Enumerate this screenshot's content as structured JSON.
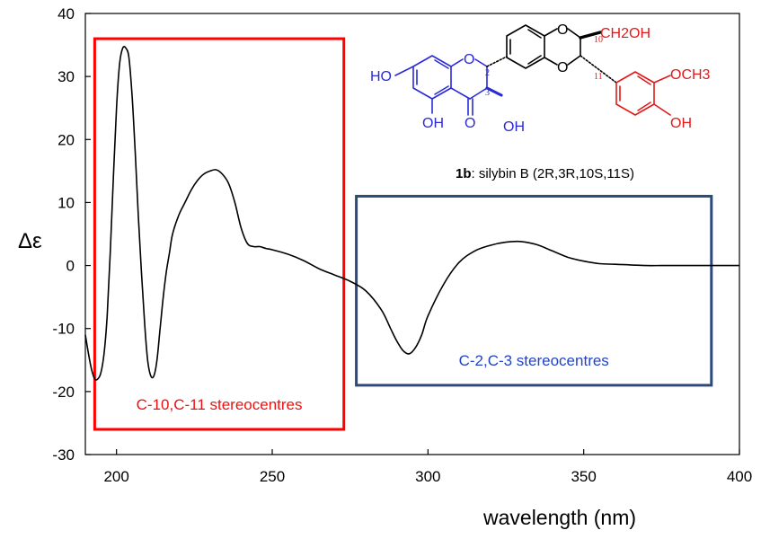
{
  "chart_data": {
    "type": "line",
    "xlabel": "wavelength (nm)",
    "ylabel": "Δε",
    "xlim": [
      190,
      400
    ],
    "ylim": [
      -30,
      40
    ],
    "xticks": [
      200,
      250,
      300,
      350,
      400
    ],
    "yticks": [
      -30,
      -20,
      -10,
      0,
      10,
      20,
      30,
      40
    ],
    "grid": false,
    "series": [
      {
        "color": "#000000",
        "x": [
          190,
          191,
          192,
          193,
          194,
          195,
          196,
          197,
          198,
          199,
          200,
          201,
          202,
          203,
          204,
          205,
          206,
          207,
          208,
          209,
          210,
          211,
          212,
          213,
          214,
          215,
          216,
          217,
          218,
          220,
          222,
          224,
          226,
          228,
          230,
          232,
          234,
          236,
          238,
          240,
          242,
          244,
          246,
          248,
          250,
          255,
          260,
          265,
          270,
          275,
          280,
          285,
          288,
          290,
          292,
          294,
          296,
          298,
          300,
          305,
          310,
          315,
          320,
          325,
          330,
          335,
          340,
          345,
          350,
          355,
          360,
          365,
          370,
          375,
          380,
          385,
          390,
          395,
          400
        ],
        "y": [
          -11,
          -14,
          -16.5,
          -18,
          -18,
          -17,
          -14,
          -8,
          2,
          14,
          25,
          32,
          34.5,
          34.5,
          33,
          27,
          18,
          8,
          -1,
          -9,
          -15,
          -17.5,
          -17.5,
          -15,
          -10,
          -5,
          -1,
          2,
          5,
          8,
          10,
          12,
          13.5,
          14.5,
          15,
          15.2,
          14.5,
          13,
          10,
          6,
          3.5,
          3,
          3,
          2.7,
          2.5,
          1.8,
          0.8,
          -0.5,
          -1.5,
          -2.5,
          -4,
          -7,
          -10,
          -12,
          -13.5,
          -14,
          -13,
          -11,
          -8,
          -3,
          0.5,
          2.3,
          3.2,
          3.7,
          3.8,
          3.3,
          2.3,
          1.3,
          0.7,
          0.3,
          0.2,
          0.1,
          0,
          0,
          0,
          0,
          0,
          0,
          0
        ]
      }
    ],
    "annotations": [
      {
        "text": "C-10,C-11 stereocentres",
        "color": "#ee1111",
        "box_color": "#ff0000",
        "region_x": [
          193,
          273
        ],
        "region_y": [
          -26,
          36
        ]
      },
      {
        "text": "C-2,C-3 stereocentres",
        "color": "#2244cc",
        "box_color": "#2c4a7a",
        "region_x": [
          277,
          391
        ],
        "region_y": [
          -19,
          11
        ]
      }
    ]
  },
  "structure": {
    "compound": "1b",
    "caption_rest": ": silybin B (2R,3R,10S,11S)",
    "labels": {
      "ho": "HO",
      "oh_bottom": "OH",
      "oh_c3": "OH",
      "o_ring": "O",
      "o_ketone": "O",
      "o_dioxane_top": "O",
      "o_dioxane_bottom": "O",
      "ch2oh": "CH2OH",
      "och3": "OCH3",
      "oh_phenol": "OH",
      "pos_2": "2",
      "pos_3": "3",
      "pos_10": "10",
      "pos_11": "11"
    },
    "colors": {
      "flavanone": "#2a2ad8",
      "dioxane": "#000000",
      "aryl": "#e01a1a"
    }
  }
}
